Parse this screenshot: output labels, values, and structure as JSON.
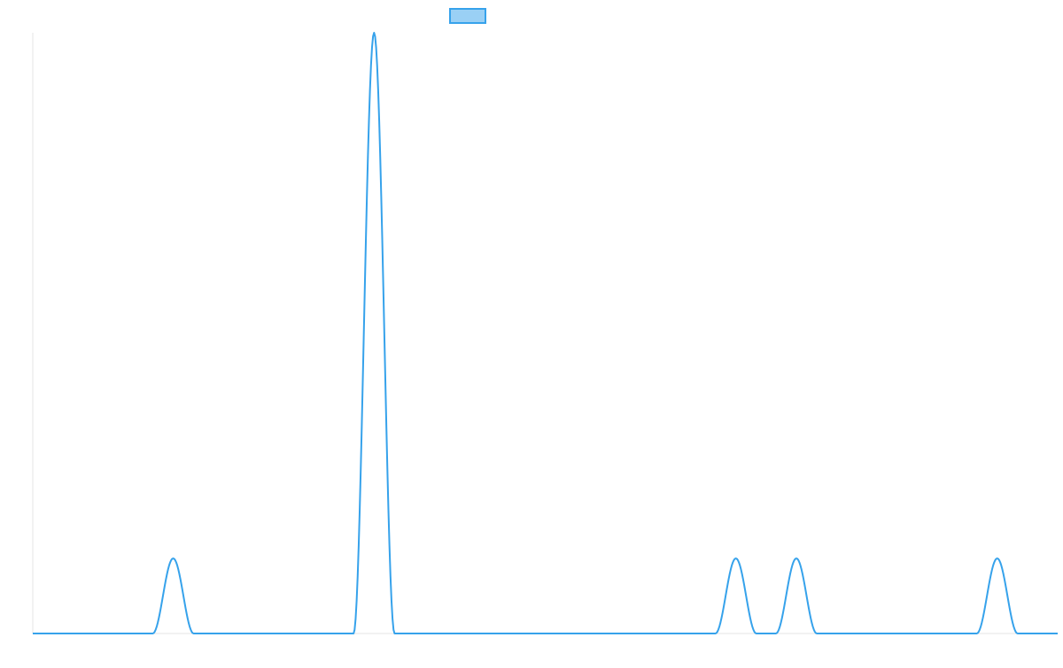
{
  "chart_data": {
    "type": "line",
    "title": "",
    "xlabel": "",
    "ylabel": "",
    "legend": {
      "position": "top-center",
      "entries": [
        {
          "label": ""
        }
      ]
    },
    "grid": false,
    "xlim": [
      0,
      100
    ],
    "ylim": [
      0,
      8
    ],
    "series": [
      {
        "color": "#36a2eb",
        "fill_color": "#9ad0f5",
        "peaks": [
          {
            "center": 13.7,
            "halfwidth": 2.0,
            "height": 1.0
          },
          {
            "center": 33.3,
            "halfwidth": 2.0,
            "height": 8.0
          },
          {
            "center": 68.6,
            "halfwidth": 2.0,
            "height": 1.0
          },
          {
            "center": 74.5,
            "halfwidth": 2.0,
            "height": 1.0
          },
          {
            "center": 94.1,
            "halfwidth": 2.0,
            "height": 1.0
          }
        ]
      }
    ]
  }
}
